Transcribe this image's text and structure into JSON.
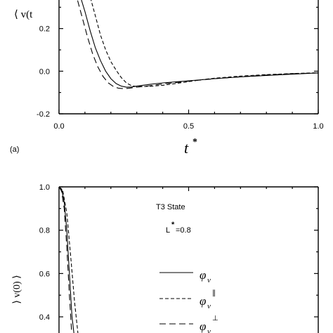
{
  "chart_data": [
    {
      "type": "line",
      "panel_label": "(a)",
      "ylabel": "⟨ v(t",
      "xlabel": "t",
      "xlabel_superscript": "*",
      "xlim": [
        0.0,
        1.0
      ],
      "ylim": [
        -0.2,
        0.4
      ],
      "xticks": [
        0.0,
        0.5,
        1.0
      ],
      "xtick_labels": [
        "0.0",
        "0.5",
        "1.0"
      ],
      "yticks": [
        -0.2,
        0.0,
        0.2
      ],
      "ytick_labels": [
        "-0.2",
        "0.0",
        "0.2"
      ],
      "grid": false,
      "series": [
        {
          "style": "solid",
          "x": [
            0.06,
            0.08,
            0.1,
            0.12,
            0.14,
            0.16,
            0.18,
            0.2,
            0.22,
            0.24,
            0.26,
            0.28,
            0.3,
            0.35,
            0.4,
            0.5,
            0.6,
            0.7,
            0.8,
            0.9,
            1.0
          ],
          "y": [
            0.42,
            0.36,
            0.28,
            0.19,
            0.11,
            0.05,
            0.0,
            -0.035,
            -0.058,
            -0.07,
            -0.075,
            -0.074,
            -0.07,
            -0.062,
            -0.055,
            -0.045,
            -0.035,
            -0.027,
            -0.02,
            -0.014,
            -0.008
          ]
        },
        {
          "style": "dashed",
          "x": [
            0.1,
            0.12,
            0.14,
            0.16,
            0.18,
            0.2,
            0.22,
            0.24,
            0.26,
            0.28,
            0.3,
            0.35,
            0.4,
            0.45,
            0.5,
            0.55,
            0.6,
            0.7,
            0.8,
            0.9,
            1.0
          ],
          "y": [
            0.42,
            0.35,
            0.26,
            0.17,
            0.1,
            0.045,
            0.005,
            -0.03,
            -0.055,
            -0.068,
            -0.072,
            -0.071,
            -0.066,
            -0.058,
            -0.049,
            -0.04,
            -0.033,
            -0.023,
            -0.016,
            -0.011,
            -0.007
          ]
        },
        {
          "style": "long-dashed",
          "x": [
            0.05,
            0.07,
            0.09,
            0.11,
            0.13,
            0.15,
            0.17,
            0.19,
            0.21,
            0.23,
            0.25,
            0.27,
            0.3,
            0.35,
            0.4,
            0.5,
            0.6,
            0.7,
            0.8,
            0.9,
            1.0
          ],
          "y": [
            0.42,
            0.34,
            0.25,
            0.16,
            0.08,
            0.02,
            -0.025,
            -0.055,
            -0.072,
            -0.08,
            -0.082,
            -0.08,
            -0.075,
            -0.068,
            -0.06,
            -0.047,
            -0.035,
            -0.026,
            -0.018,
            -0.012,
            -0.008
          ]
        }
      ]
    },
    {
      "type": "line",
      "ylabel": "⟩ v(0) ⟩",
      "ylim": [
        0.3,
        1.0
      ],
      "xlim": [
        0.0,
        1.0
      ],
      "yticks": [
        0.4,
        0.6,
        0.8,
        1.0
      ],
      "ytick_labels": [
        "0.4",
        "0.6",
        "0.8",
        "1.0"
      ],
      "grid": false,
      "annotation_lines": [
        "T3  State",
        "L",
        "=0.8"
      ],
      "annotation_superscript": "*",
      "legend": {
        "placement": "right",
        "entries": [
          {
            "style": "solid",
            "label": "φ",
            "subscript": "v",
            "superscript": ""
          },
          {
            "style": "dashed",
            "label": "φ",
            "subscript": "v",
            "superscript": "∥"
          },
          {
            "style": "long-dashed",
            "label": "φ",
            "subscript": "v",
            "superscript": "⊥"
          }
        ]
      },
      "series": [
        {
          "style": "solid",
          "x": [
            0.0,
            0.01,
            0.02,
            0.03,
            0.04,
            0.05,
            0.06
          ],
          "y": [
            1.0,
            0.99,
            0.93,
            0.8,
            0.6,
            0.4,
            0.3
          ]
        },
        {
          "style": "dashed",
          "x": [
            0.0,
            0.015,
            0.03,
            0.045,
            0.06,
            0.075
          ],
          "y": [
            1.0,
            0.98,
            0.88,
            0.68,
            0.47,
            0.3
          ]
        },
        {
          "style": "long-dashed",
          "x": [
            0.0,
            0.01,
            0.02,
            0.03,
            0.04,
            0.05
          ],
          "y": [
            1.0,
            0.98,
            0.9,
            0.72,
            0.5,
            0.3
          ]
        }
      ]
    }
  ]
}
